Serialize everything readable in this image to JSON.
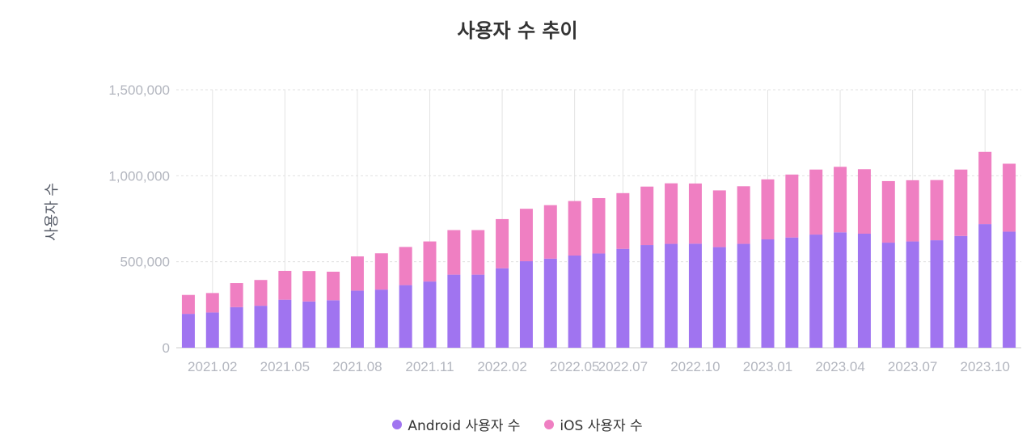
{
  "chart_data": {
    "type": "bar",
    "stacked": true,
    "title": "사용자 수 추이",
    "xlabel": "",
    "ylabel": "사용자 수",
    "ylim": [
      0,
      1500000
    ],
    "yticks": [
      0,
      500000,
      1000000,
      1500000
    ],
    "ytick_labels": [
      "0",
      "500,000",
      "1,000,000",
      "1,500,000"
    ],
    "categories": [
      "2021.01",
      "2021.02",
      "2021.03",
      "2021.04",
      "2021.05",
      "2021.06",
      "2021.07",
      "2021.08",
      "2021.09",
      "2021.10",
      "2021.11",
      "2021.12",
      "2022.01",
      "2022.02",
      "2022.03",
      "2022.04",
      "2022.05",
      "2022.06",
      "2022.07",
      "2022.08",
      "2022.09",
      "2022.10",
      "2022.11",
      "2022.12",
      "2023.01",
      "2023.02",
      "2023.03",
      "2023.04",
      "2023.05",
      "2023.06",
      "2023.07",
      "2023.08",
      "2023.09",
      "2023.10",
      "2023.11"
    ],
    "x_tick_labels": [
      "2021.02",
      "2021.05",
      "2021.08",
      "2021.11",
      "2022.02",
      "2022.05",
      "2022.07",
      "2022.10",
      "2023.01",
      "2023.04",
      "2023.07",
      "2023.10"
    ],
    "series": [
      {
        "name": "Android 사용자 수",
        "color": "#a074f0",
        "values": [
          197000,
          205000,
          236000,
          244000,
          279000,
          269000,
          276000,
          332000,
          338000,
          364000,
          385000,
          425000,
          425000,
          462000,
          503000,
          518000,
          536000,
          548000,
          575000,
          597000,
          604000,
          605000,
          585000,
          604000,
          630000,
          641000,
          658000,
          671000,
          663000,
          611000,
          618000,
          625000,
          650000,
          719000,
          675000
        ]
      },
      {
        "name": "iOS 사용자 수",
        "color": "#ef7fc2",
        "values": [
          110000,
          113000,
          140000,
          150000,
          168000,
          177000,
          166000,
          199000,
          211000,
          222000,
          233000,
          259000,
          259000,
          286000,
          305000,
          311000,
          317000,
          322000,
          324000,
          340000,
          352000,
          350000,
          330000,
          335000,
          349000,
          366000,
          378000,
          381000,
          375000,
          358000,
          356000,
          350000,
          386000,
          420000,
          395000
        ]
      }
    ],
    "grid": true,
    "legend_position": "bottom"
  }
}
